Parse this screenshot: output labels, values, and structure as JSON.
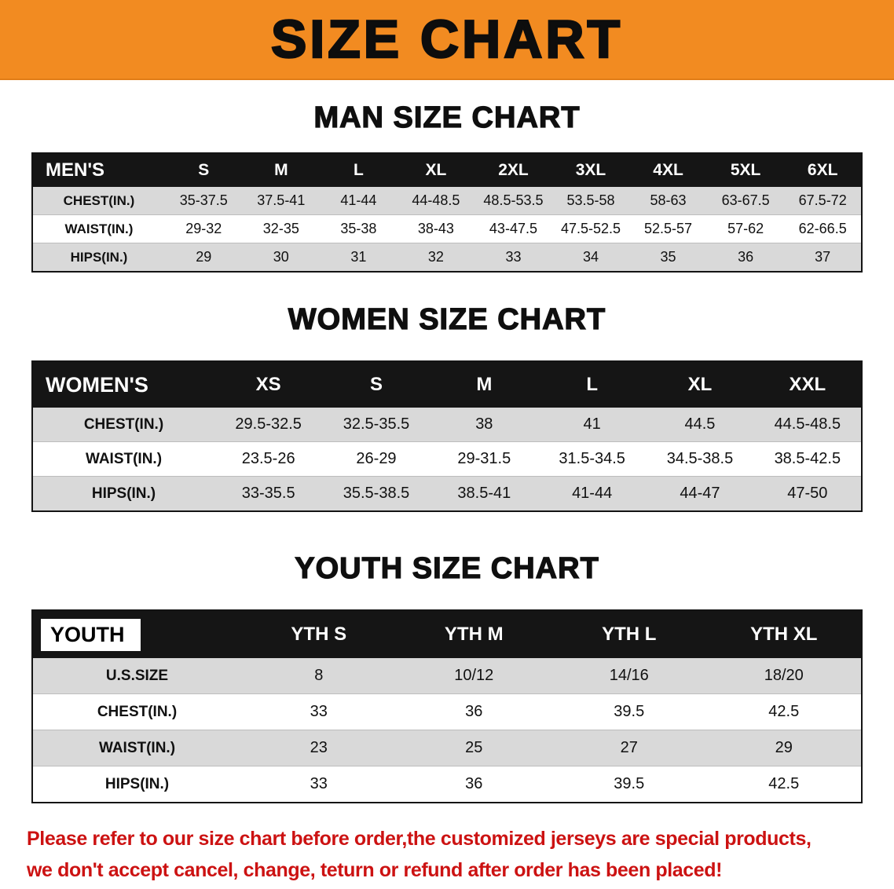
{
  "banner": {
    "title": "SIZE CHART"
  },
  "sections": {
    "men": {
      "heading": "MAN SIZE CHART",
      "table": {
        "header": [
          "MEN'S",
          "S",
          "M",
          "L",
          "XL",
          "2XL",
          "3XL",
          "4XL",
          "5XL",
          "6XL"
        ],
        "rows": [
          [
            "CHEST(IN.)",
            "35-37.5",
            "37.5-41",
            "41-44",
            "44-48.5",
            "48.5-53.5",
            "53.5-58",
            "58-63",
            "63-67.5",
            "67.5-72"
          ],
          [
            "WAIST(IN.)",
            "29-32",
            "32-35",
            "35-38",
            "38-43",
            "43-47.5",
            "47.5-52.5",
            "52.5-57",
            "57-62",
            "62-66.5"
          ],
          [
            "HIPS(IN.)",
            "29",
            "30",
            "31",
            "32",
            "33",
            "34",
            "35",
            "36",
            "37"
          ]
        ]
      }
    },
    "women": {
      "heading": "WOMEN SIZE CHART",
      "table": {
        "header": [
          "WOMEN'S",
          "XS",
          "S",
          "M",
          "L",
          "XL",
          "XXL"
        ],
        "rows": [
          [
            "CHEST(IN.)",
            "29.5-32.5",
            "32.5-35.5",
            "38",
            "41",
            "44.5",
            "44.5-48.5"
          ],
          [
            "WAIST(IN.)",
            "23.5-26",
            "26-29",
            "29-31.5",
            "31.5-34.5",
            "34.5-38.5",
            "38.5-42.5"
          ],
          [
            "HIPS(IN.)",
            "33-35.5",
            "35.5-38.5",
            "38.5-41",
            "41-44",
            "44-47",
            "47-50"
          ]
        ]
      }
    },
    "youth": {
      "heading": "YOUTH SIZE CHART",
      "table": {
        "header": [
          "YOUTH",
          "YTH S",
          "YTH M",
          "YTH L",
          "YTH XL"
        ],
        "rows": [
          [
            "U.S.SIZE",
            "8",
            "10/12",
            "14/16",
            "18/20"
          ],
          [
            "CHEST(IN.)",
            "33",
            "36",
            "39.5",
            "42.5"
          ],
          [
            "WAIST(IN.)",
            "23",
            "25",
            "27",
            "29"
          ],
          [
            "HIPS(IN.)",
            "33",
            "36",
            "39.5",
            "42.5"
          ]
        ]
      }
    }
  },
  "note": {
    "line1": "Please refer to our size chart before order,the customized jerseys are special products,",
    "line2": "we don't accept cancel, change, teturn or refund after order has been placed!"
  },
  "colors": {
    "banner_orange": "#F28B21",
    "header_black": "#151515",
    "row_gray": "#D9D9D9",
    "note_red": "#CC1212"
  }
}
